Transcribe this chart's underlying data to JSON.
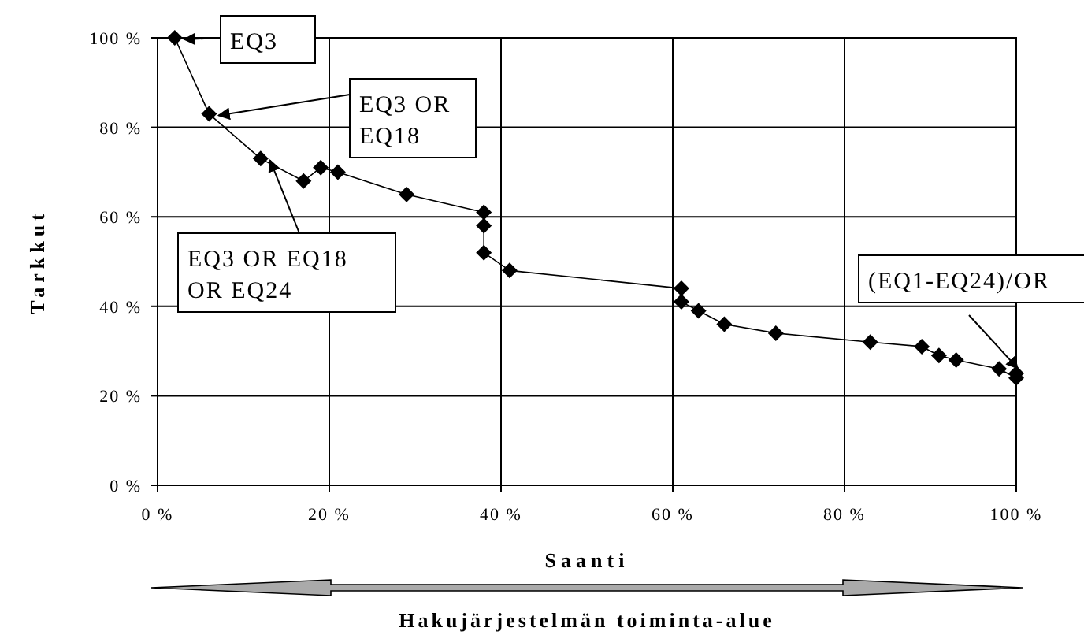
{
  "chart_data": {
    "type": "line",
    "xlabel": "Saanti",
    "ylabel": "Tarkkut",
    "x": [
      2,
      6,
      12,
      17,
      19,
      21,
      29,
      38,
      38,
      38,
      41,
      61,
      61,
      63,
      66,
      72,
      83,
      89,
      91,
      93,
      98,
      100,
      100
    ],
    "series": [
      {
        "color": "#000000",
        "values": [
          100,
          83,
          73,
          68,
          71,
          70,
          65,
          61,
          58,
          52,
          48,
          44,
          41,
          39,
          36,
          34,
          32,
          31,
          29,
          28,
          26,
          24,
          25
        ]
      }
    ],
    "xlim": [
      0,
      100
    ],
    "ylim": [
      0,
      100
    ],
    "xticks": [
      {
        "value": 0,
        "label": "0 %"
      },
      {
        "value": 20,
        "label": "20 %"
      },
      {
        "value": 40,
        "label": "40 %"
      },
      {
        "value": 60,
        "label": "60 %"
      },
      {
        "value": 80,
        "label": "80 %"
      },
      {
        "value": 100,
        "label": "100 %"
      }
    ],
    "yticks": [
      {
        "value": 0,
        "label": "0 %"
      },
      {
        "value": 20,
        "label": "20 %"
      },
      {
        "value": 40,
        "label": "40 %"
      },
      {
        "value": 60,
        "label": "60 %"
      },
      {
        "value": 80,
        "label": "80 %"
      },
      {
        "value": 100,
        "label": "100 %"
      }
    ],
    "grid": true,
    "marker": "diamond",
    "line_style": "solid",
    "annotations": [
      {
        "text": "EQ3",
        "x": 2,
        "y": 100
      },
      {
        "text": "EQ3 OR\nEQ18",
        "x": 6,
        "y": 83
      },
      {
        "text": "EQ3 OR EQ18\nOR EQ24",
        "x": 12,
        "y": 73
      },
      {
        "text": "(EQ1-EQ24)/OR",
        "x": 100,
        "y": 24
      },
      "Hakujärjestelmän toiminta-alue"
    ]
  }
}
